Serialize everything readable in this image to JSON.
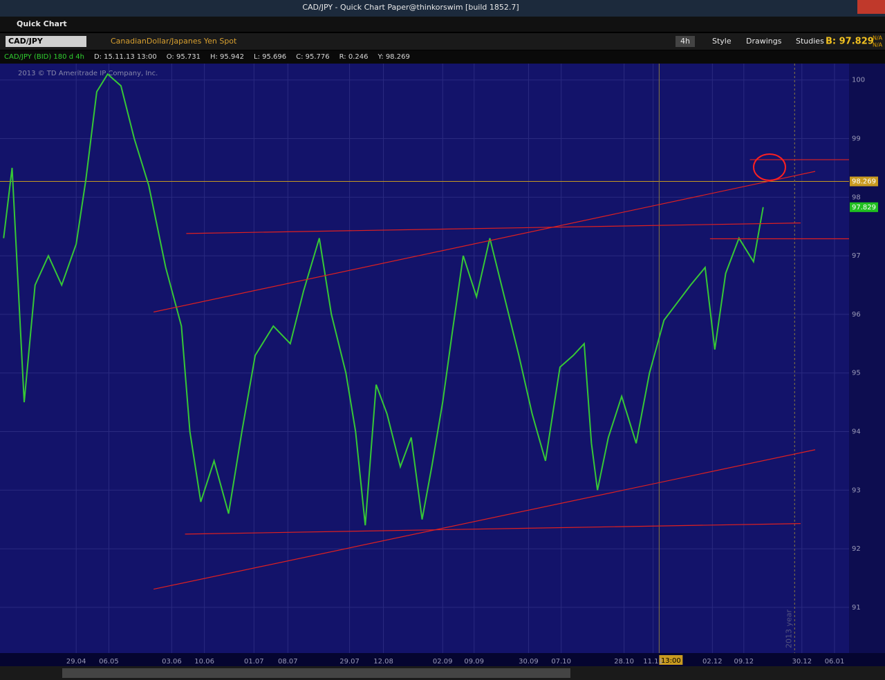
{
  "header": {
    "window_title": "CAD/JPY - Quick Chart Paper@thinkorswim [build 1852.7]",
    "tab": "Quick Chart"
  },
  "toolbar": {
    "symbol": "CAD/JPY",
    "description": "CanadianDollar/Japanes Yen Spot",
    "aggregation": "4h",
    "buttons": [
      "Style",
      "Drawings",
      "Studies"
    ],
    "bid": "B: 97.829",
    "na": [
      "N/A",
      "N/A"
    ]
  },
  "info_bar": [
    "CAD/JPY (BID) 180 d 4h",
    "D: 15.11.13 13:00",
    "O: 95.731",
    "H: 95.942",
    "L: 95.696",
    "C: 95.776",
    "R: 0.246",
    "Y: 98.269"
  ],
  "copyright": "2013 © TD Ameritrade IP Company, Inc.",
  "chart_data": {
    "type": "line",
    "color": "#36c836",
    "x": [
      3,
      10,
      20,
      29,
      40,
      51,
      63,
      71,
      80,
      89,
      100,
      111,
      123,
      137,
      150,
      157,
      166,
      177,
      189,
      200,
      211,
      226,
      240,
      251,
      264,
      274,
      286,
      294,
      302,
      311,
      320,
      331,
      340,
      349,
      357,
      366,
      374,
      383,
      394,
      405,
      417,
      429,
      440,
      451,
      463,
      474,
      483,
      489,
      494,
      503,
      514,
      526,
      537,
      549,
      560,
      571,
      583,
      591,
      600,
      611,
      623,
      631
    ],
    "values": [
      97.3,
      98.5,
      94.5,
      96.5,
      97.0,
      96.5,
      97.2,
      98.3,
      99.8,
      100.1,
      99.9,
      99.0,
      98.2,
      96.8,
      95.8,
      94.0,
      92.8,
      93.5,
      92.6,
      94.0,
      95.3,
      95.8,
      95.5,
      96.4,
      97.3,
      96.0,
      95.0,
      94.0,
      92.4,
      94.8,
      94.3,
      93.4,
      93.9,
      92.5,
      93.4,
      94.5,
      95.7,
      97.0,
      96.3,
      97.3,
      96.3,
      95.3,
      94.3,
      93.5,
      95.1,
      95.3,
      95.5,
      93.8,
      93.0,
      93.9,
      94.6,
      93.8,
      95.0,
      95.9,
      96.2,
      96.5,
      96.8,
      95.4,
      96.7,
      97.3,
      96.9,
      97.83
    ],
    "xlim": [
      0,
      702
    ],
    "ylim": [
      90.22,
      100.28
    ],
    "yticks": [
      91,
      92,
      93,
      94,
      95,
      96,
      97,
      98,
      99,
      100
    ],
    "xticks": [
      {
        "value": 63,
        "label": "29.04"
      },
      {
        "value": 90,
        "label": "06.05"
      },
      {
        "value": 142,
        "label": "03.06"
      },
      {
        "value": 169,
        "label": "10.06"
      },
      {
        "value": 210,
        "label": "01.07"
      },
      {
        "value": 238,
        "label": "08.07"
      },
      {
        "value": 289,
        "label": "29.07"
      },
      {
        "value": 317,
        "label": "12.08"
      },
      {
        "value": 366,
        "label": "02.09"
      },
      {
        "value": 392,
        "label": "09.09"
      },
      {
        "value": 437,
        "label": "30.09"
      },
      {
        "value": 464,
        "label": "07.10"
      },
      {
        "value": 516,
        "label": "28.10"
      },
      {
        "value": 540,
        "label": "11.11"
      },
      {
        "value": 589,
        "label": "02.12"
      },
      {
        "value": 615,
        "label": "09.12"
      },
      {
        "value": 663,
        "label": "30.12"
      },
      {
        "value": 690,
        "label": "06.01"
      }
    ],
    "drawings_color": "#e02020",
    "drawings": [
      {
        "x": [
          127,
          674
        ],
        "y": [
          96.04,
          98.44
        ]
      },
      {
        "x": [
          154,
          662
        ],
        "y": [
          97.38,
          97.56
        ]
      },
      {
        "x": [
          153,
          662
        ],
        "y": [
          92.25,
          92.43
        ]
      },
      {
        "x": [
          127,
          674
        ],
        "y": [
          91.31,
          93.69
        ]
      },
      {
        "x": [
          620,
          702
        ],
        "y": [
          98.64,
          98.64
        ]
      },
      {
        "x": [
          587,
          702
        ],
        "y": [
          97.29,
          97.29
        ]
      }
    ],
    "price_labels": [
      {
        "value": 98.269,
        "label": "98.269",
        "color": "#c89a20"
      },
      {
        "value": 97.829,
        "label": "97.829",
        "color": "#20c020"
      }
    ],
    "cursor": {
      "x": 545,
      "label": "13:00"
    },
    "year_marker": {
      "x": 657,
      "label": "2013 year"
    }
  }
}
